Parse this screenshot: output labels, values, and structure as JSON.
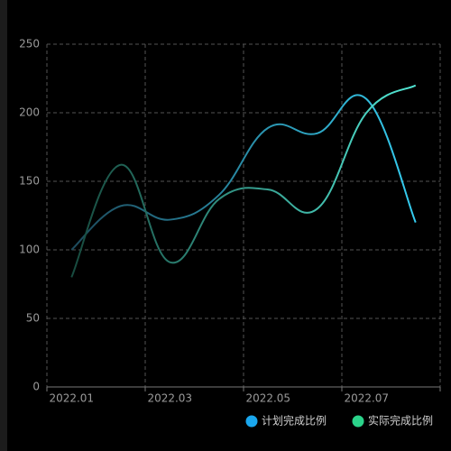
{
  "chart_data": {
    "type": "line",
    "categories": [
      "2022.01",
      null,
      "2022.03",
      null,
      "2022.05",
      null,
      "2022.07",
      null
    ],
    "series": [
      {
        "name": "计划完成比例",
        "color": "#1aa7ee",
        "line_gradient": [
          "#1d4a5c",
          "#35cdf0"
        ],
        "values": [
          100,
          132,
          122,
          140,
          189,
          185,
          210,
          120
        ]
      },
      {
        "name": "实际完成比例",
        "color": "#2bd38a",
        "line_gradient": [
          "#174a3e",
          "#52e8d6"
        ],
        "values": [
          80,
          162,
          91,
          137,
          144,
          130,
          200,
          220
        ]
      }
    ],
    "ylim": [
      0,
      250
    ],
    "yticks": [
      0,
      50,
      100,
      150,
      200,
      250
    ],
    "grid": true,
    "smooth": true,
    "legend": "bottom-right"
  }
}
